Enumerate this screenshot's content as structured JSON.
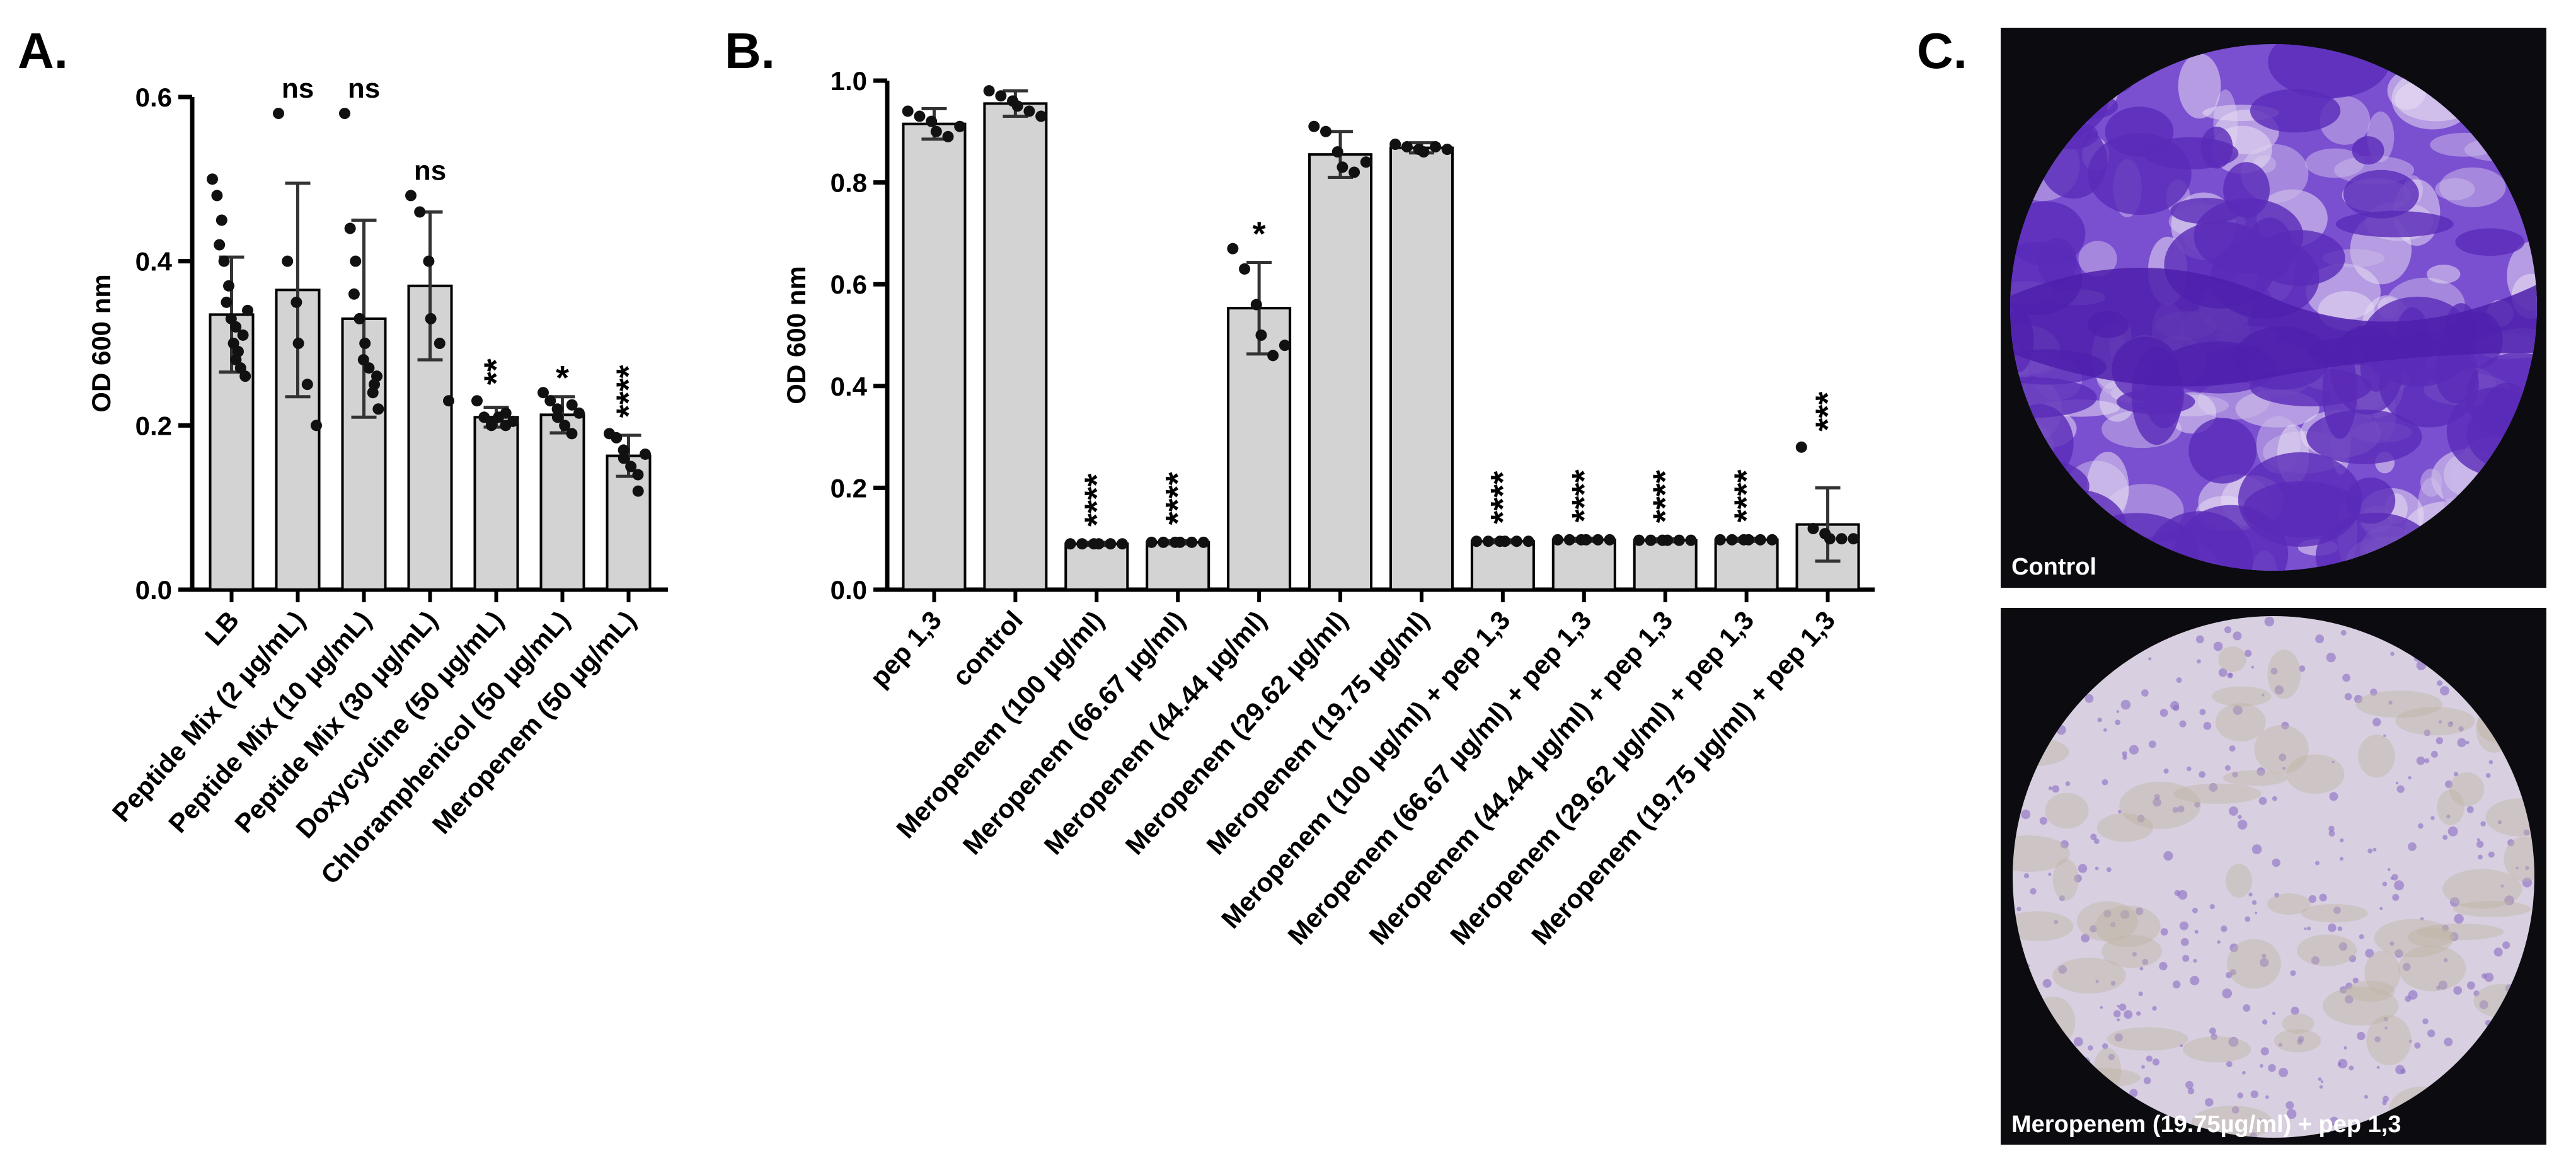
{
  "chart_data": [
    {
      "type": "bar",
      "panel_label": "A.",
      "ylabel": "OD 600 nm",
      "color": "#d3d3d3",
      "categories": [
        "LB",
        "Peptide Mix (2 µg/mL)",
        "Peptide Mix (10 µg/mL)",
        "Peptide Mix (30 µg/mL)",
        "Doxycycline (50 µg/mL)",
        "Chloramphenicol (50 µg/mL)",
        "Meropenem (50 µg/mL)"
      ],
      "values": [
        0.335,
        0.365,
        0.33,
        0.37,
        0.21,
        0.213,
        0.163
      ],
      "errors": [
        0.07,
        0.13,
        0.12,
        0.09,
        0.012,
        0.022,
        0.025
      ],
      "annotations": [
        null,
        "ns",
        "ns",
        "ns",
        "**",
        "*",
        "****"
      ],
      "points": [
        [
          0.5,
          0.48,
          0.45,
          0.42,
          0.4,
          0.37,
          0.35,
          0.33,
          0.32,
          0.3,
          0.29,
          0.28,
          0.27,
          0.26,
          0.31,
          0.34
        ],
        [
          0.58,
          0.4,
          0.35,
          0.3,
          0.25,
          0.2
        ],
        [
          0.58,
          0.44,
          0.4,
          0.36,
          0.33,
          0.3,
          0.28,
          0.27,
          0.25,
          0.24,
          0.22,
          0.26
        ],
        [
          0.48,
          0.46,
          0.4,
          0.33,
          0.3,
          0.23
        ],
        [
          0.23,
          0.21,
          0.205,
          0.2,
          0.21,
          0.2,
          0.215,
          0.205
        ],
        [
          0.24,
          0.23,
          0.22,
          0.21,
          0.2,
          0.19,
          0.225,
          0.215
        ],
        [
          0.19,
          0.185,
          0.17,
          0.16,
          0.15,
          0.14,
          0.12,
          0.165
        ]
      ],
      "ylim": [
        0,
        0.6
      ],
      "yticks": [
        {
          "value": 0,
          "label": "0.0"
        },
        0.2,
        0.4,
        0.6
      ]
    },
    {
      "type": "bar",
      "panel_label": "B.",
      "ylabel": "OD 600 nm",
      "color": "#d3d3d3",
      "categories": [
        "pep 1,3",
        "control",
        "Meropenem (100 µg/ml)",
        "Meropenem (66.67 µg/ml)",
        "Meropenem (44.44 µg/ml)",
        "Meropenem (29.62 µg/ml)",
        "Meropenem (19.75 µg/ml)",
        "Meropenem (100 µg/ml) + pep 1,3",
        "Meropenem (66.67 µg/ml) + pep 1,3",
        "Meropenem (44.44 µg/ml) + pep 1,3",
        "Meropenem (29.62 µg/ml) + pep 1,3",
        "Meropenem (19.75 µg/ml) + pep 1,3"
      ],
      "values": [
        0.915,
        0.955,
        0.09,
        0.093,
        0.553,
        0.855,
        0.868,
        0.095,
        0.098,
        0.097,
        0.098,
        0.128
      ],
      "errors": [
        0.03,
        0.025,
        0.003,
        0.003,
        0.09,
        0.045,
        0.01,
        0.003,
        0.003,
        0.003,
        0.003,
        0.072
      ],
      "annotations": [
        null,
        null,
        "****",
        "****",
        "*",
        null,
        null,
        "****",
        "****",
        "****",
        "****",
        "***"
      ],
      "points": [
        [
          0.94,
          0.93,
          0.92,
          0.9,
          0.89,
          0.91
        ],
        [
          0.98,
          0.97,
          0.96,
          0.95,
          0.94,
          0.93
        ],
        [
          0.09,
          0.09,
          0.09,
          0.09,
          0.09,
          0.09
        ],
        [
          0.093,
          0.093,
          0.093,
          0.093,
          0.093,
          0.093
        ],
        [
          0.67,
          0.63,
          0.56,
          0.5,
          0.46,
          0.48
        ],
        [
          0.91,
          0.9,
          0.86,
          0.83,
          0.82,
          0.84
        ],
        [
          0.875,
          0.87,
          0.865,
          0.86,
          0.87,
          0.865
        ],
        [
          0.095,
          0.095,
          0.095,
          0.095,
          0.095,
          0.095
        ],
        [
          0.098,
          0.098,
          0.098,
          0.098,
          0.098,
          0.098
        ],
        [
          0.097,
          0.097,
          0.097,
          0.097,
          0.097,
          0.097
        ],
        [
          0.098,
          0.098,
          0.098,
          0.098,
          0.098,
          0.098
        ],
        [
          0.28,
          0.12,
          0.11,
          0.1,
          0.1,
          0.1
        ]
      ],
      "ylim": [
        0,
        1.0
      ],
      "yticks": [
        {
          "value": 0,
          "label": "0.0"
        },
        0.2,
        0.4,
        0.6,
        0.8,
        {
          "value": 1,
          "label": "1.0"
        }
      ]
    }
  ],
  "panel_c": {
    "panel_label": "C.",
    "images": [
      {
        "caption": "Control"
      },
      {
        "caption": "Meropenem (19.75µg/ml) + pep 1,3"
      }
    ]
  }
}
